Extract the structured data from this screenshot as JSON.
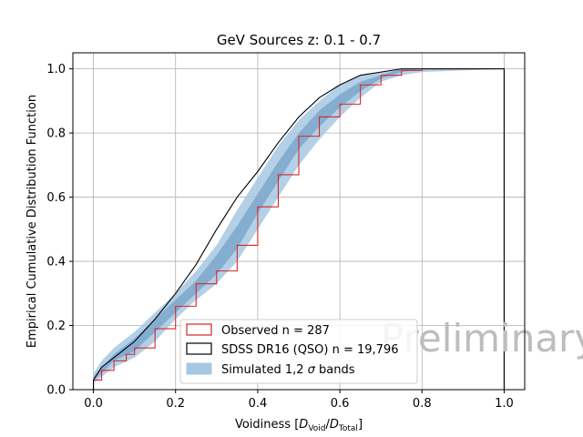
{
  "chart_data": {
    "type": "line",
    "title": "GeV Sources z: 0.1 - 0.7",
    "xlabel_prefix": "Voidiness [",
    "xlabel_num": "D",
    "xlabel_num_sub": "Void",
    "xlabel_den": "D",
    "xlabel_den_sub": "Total",
    "xlabel_suffix": "]",
    "ylabel": "Empirical Cumulative Distribution Function",
    "xlim": [
      -0.05,
      1.05
    ],
    "ylim": [
      0.0,
      1.05
    ],
    "xticks": [
      0.0,
      0.2,
      0.4,
      0.6,
      0.8,
      1.0
    ],
    "xtick_labels": [
      "0.0",
      "0.2",
      "0.4",
      "0.6",
      "0.8",
      "1.0"
    ],
    "yticks": [
      0.0,
      0.2,
      0.4,
      0.6,
      0.8,
      1.0
    ],
    "ytick_labels": [
      "0.0",
      "0.2",
      "0.4",
      "0.6",
      "0.8",
      "1.0"
    ],
    "grid": true,
    "legend_position": "lower-center",
    "watermark": "Preliminary",
    "colors": {
      "observed": "#d62728",
      "sdss": "#000000",
      "band2": "#a6c8e2",
      "band1": "#7ea8cc"
    },
    "series": [
      {
        "name": "Observed n = 287",
        "kind": "step",
        "x": [
          0.0,
          0.02,
          0.05,
          0.08,
          0.1,
          0.15,
          0.2,
          0.25,
          0.3,
          0.35,
          0.4,
          0.45,
          0.5,
          0.55,
          0.6,
          0.65,
          0.7,
          0.75,
          0.8,
          1.0
        ],
        "y": [
          0.03,
          0.06,
          0.09,
          0.11,
          0.13,
          0.19,
          0.26,
          0.33,
          0.37,
          0.45,
          0.57,
          0.67,
          0.79,
          0.85,
          0.89,
          0.95,
          0.98,
          0.995,
          1.0,
          1.0
        ]
      },
      {
        "name": "SDSS DR16 (QSO) n = 19,796",
        "kind": "line",
        "x": [
          0.0,
          0.02,
          0.05,
          0.1,
          0.15,
          0.2,
          0.25,
          0.3,
          0.35,
          0.4,
          0.45,
          0.5,
          0.55,
          0.6,
          0.65,
          0.7,
          0.75,
          0.8,
          1.0
        ],
        "y": [
          0.03,
          0.07,
          0.1,
          0.15,
          0.22,
          0.3,
          0.39,
          0.5,
          0.6,
          0.68,
          0.77,
          0.85,
          0.91,
          0.95,
          0.98,
          0.99,
          1.0,
          1.0,
          1.0
        ]
      },
      {
        "name": "Simulated 1,2 σ bands",
        "kind": "band",
        "x": [
          0.0,
          0.02,
          0.05,
          0.1,
          0.15,
          0.2,
          0.25,
          0.3,
          0.35,
          0.4,
          0.45,
          0.5,
          0.55,
          0.6,
          0.65,
          0.7,
          0.75,
          0.8,
          1.0
        ],
        "lower2": [
          0.02,
          0.04,
          0.07,
          0.1,
          0.15,
          0.22,
          0.28,
          0.33,
          0.4,
          0.5,
          0.6,
          0.7,
          0.78,
          0.85,
          0.91,
          0.96,
          0.98,
          0.99,
          1.0
        ],
        "lower1": [
          0.03,
          0.05,
          0.09,
          0.12,
          0.18,
          0.24,
          0.3,
          0.36,
          0.44,
          0.55,
          0.65,
          0.75,
          0.82,
          0.88,
          0.93,
          0.97,
          0.99,
          1.0,
          1.0
        ],
        "upper1": [
          0.04,
          0.07,
          0.11,
          0.16,
          0.22,
          0.28,
          0.34,
          0.42,
          0.51,
          0.61,
          0.71,
          0.8,
          0.87,
          0.92,
          0.96,
          0.98,
          1.0,
          1.0,
          1.0
        ],
        "upper2": [
          0.05,
          0.09,
          0.13,
          0.18,
          0.24,
          0.3,
          0.37,
          0.45,
          0.56,
          0.66,
          0.76,
          0.84,
          0.9,
          0.95,
          0.98,
          0.99,
          1.0,
          1.0,
          1.0
        ]
      }
    ]
  },
  "legend": {
    "observed_label": "Observed n = 287",
    "sdss_label": "SDSS DR16 (QSO) n = 19,796",
    "band_label_prefix": "Simulated 1,2 ",
    "band_label_sigma": "σ",
    "band_label_suffix": " bands"
  }
}
